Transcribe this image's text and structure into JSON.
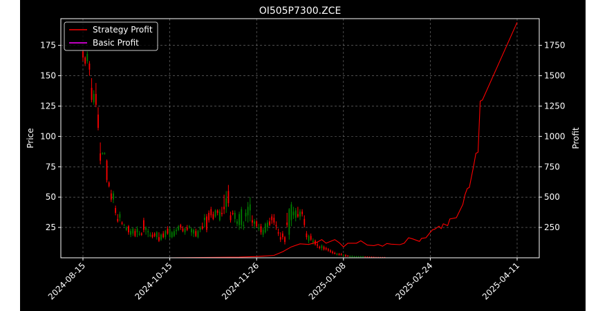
{
  "chart_data": {
    "type": "candlestick+line",
    "title": "OI505P7300.ZCE",
    "ylabel_left": "Price",
    "ylabel_right": "Profit",
    "xlabel": "",
    "grid": true,
    "legend": {
      "placement": "top-left",
      "entries": [
        "Strategy Profit",
        "Basic Profit"
      ]
    },
    "colors": {
      "background": "#000000",
      "up": "#008000",
      "down": "#ff0000",
      "strategy": "#ff0000",
      "basic": "#ff00ff",
      "text": "#ffffff"
    },
    "xticks": [
      "2024-08-15",
      "2024-10-15",
      "2024-11-26",
      "2025-01-08",
      "2025-02-24",
      "2025-04-11"
    ],
    "xtick_index": [
      0,
      40,
      80,
      120,
      160,
      200
    ],
    "ylim_left": [
      0,
      197
    ],
    "yticks_left": [
      25,
      50,
      75,
      100,
      125,
      150,
      175
    ],
    "ylim_right": [
      0,
      1970
    ],
    "yticks_right": [
      250,
      500,
      750,
      1000,
      1250,
      1500,
      1750
    ],
    "candles": [
      [
        0,
        170,
        172,
        162,
        165
      ],
      [
        1,
        165,
        166,
        158,
        160
      ],
      [
        2,
        162,
        170,
        160,
        168
      ],
      [
        3,
        160,
        162,
        150,
        155
      ],
      [
        4,
        140,
        148,
        128,
        130
      ],
      [
        5,
        128,
        138,
        126,
        135
      ],
      [
        6,
        135,
        144,
        124,
        126
      ],
      [
        7,
        118,
        124,
        105,
        107
      ],
      [
        8,
        86,
        95,
        77,
        80
      ],
      [
        9,
        86,
        87,
        85,
        86
      ],
      [
        10,
        86,
        87,
        85,
        86
      ],
      [
        11,
        80,
        81,
        62,
        64
      ],
      [
        12,
        62,
        63,
        58,
        59
      ],
      [
        13,
        53,
        56,
        46,
        48
      ],
      [
        14,
        48,
        55,
        45,
        53
      ],
      [
        15,
        41,
        43,
        35,
        37
      ],
      [
        16,
        32,
        36,
        29,
        30
      ],
      [
        17,
        33,
        38,
        30,
        36
      ],
      [
        18,
        29,
        30,
        27,
        28
      ],
      [
        19,
        27,
        28,
        26,
        27
      ],
      [
        20,
        23,
        26,
        22,
        25
      ],
      [
        21,
        26,
        27,
        19,
        21
      ],
      [
        22,
        19,
        24,
        17,
        22
      ],
      [
        23,
        20,
        25,
        18,
        24
      ],
      [
        24,
        22,
        24,
        17,
        18
      ],
      [
        25,
        21,
        26,
        17,
        24
      ],
      [
        26,
        19,
        22,
        18,
        20
      ],
      [
        27,
        20,
        21,
        18,
        19
      ],
      [
        28,
        31,
        33,
        21,
        23
      ],
      [
        29,
        23,
        26,
        19,
        25
      ],
      [
        30,
        21,
        24,
        17,
        22
      ],
      [
        31,
        18,
        21,
        17,
        19
      ],
      [
        32,
        19,
        21,
        16,
        17
      ],
      [
        33,
        20,
        21,
        17,
        18
      ],
      [
        34,
        17,
        22,
        15,
        21
      ],
      [
        35,
        17,
        21,
        13,
        14
      ],
      [
        36,
        15,
        20,
        14,
        19
      ],
      [
        37,
        20,
        22,
        16,
        17
      ],
      [
        38,
        17,
        23,
        15,
        22
      ],
      [
        39,
        24,
        26,
        19,
        20
      ],
      [
        40,
        17,
        25,
        16,
        24
      ],
      [
        41,
        17,
        22,
        16,
        21
      ],
      [
        42,
        18,
        24,
        17,
        22
      ],
      [
        43,
        22,
        25,
        19,
        23
      ],
      [
        44,
        23,
        27,
        22,
        26
      ],
      [
        45,
        27,
        28,
        23,
        25
      ],
      [
        46,
        24,
        26,
        21,
        22
      ],
      [
        47,
        21,
        25,
        19,
        24
      ],
      [
        48,
        25,
        27,
        22,
        23
      ],
      [
        49,
        25,
        27,
        24,
        26
      ],
      [
        50,
        21,
        25,
        18,
        24
      ],
      [
        51,
        20,
        24,
        17,
        23
      ],
      [
        52,
        22,
        24,
        17,
        18
      ],
      [
        53,
        17,
        23,
        16,
        22
      ],
      [
        54,
        23,
        26,
        21,
        25
      ],
      [
        55,
        26,
        29,
        23,
        24
      ],
      [
        56,
        31,
        36,
        25,
        33
      ],
      [
        57,
        34,
        36,
        21,
        23
      ],
      [
        58,
        37,
        39,
        29,
        31
      ],
      [
        59,
        40,
        42,
        33,
        35
      ],
      [
        60,
        36,
        38,
        31,
        32
      ],
      [
        61,
        34,
        40,
        33,
        39
      ],
      [
        62,
        39,
        40,
        35,
        37
      ],
      [
        63,
        31,
        40,
        30,
        38
      ],
      [
        64,
        37,
        42,
        34,
        36
      ],
      [
        65,
        42,
        52,
        36,
        40
      ],
      [
        66,
        42,
        55,
        37,
        49
      ],
      [
        67,
        55,
        60,
        42,
        45
      ],
      [
        68,
        35,
        38,
        29,
        31
      ],
      [
        69,
        37,
        39,
        35,
        36
      ],
      [
        70,
        32,
        39,
        29,
        37
      ],
      [
        71,
        28,
        32,
        26,
        30
      ],
      [
        72,
        27,
        38,
        23,
        36
      ],
      [
        73,
        27,
        42,
        24,
        40
      ],
      [
        74,
        26,
        30,
        23,
        27
      ],
      [
        75,
        34,
        40,
        30,
        37
      ],
      [
        76,
        35,
        46,
        29,
        42
      ],
      [
        77,
        39,
        50,
        30,
        44
      ],
      [
        78,
        31,
        35,
        26,
        29
      ],
      [
        79,
        28,
        32,
        24,
        30
      ],
      [
        80,
        30,
        31,
        25,
        26
      ],
      [
        81,
        24,
        28,
        22,
        25
      ],
      [
        82,
        26,
        28,
        19,
        21
      ],
      [
        83,
        19,
        25,
        17,
        23
      ],
      [
        84,
        21,
        29,
        20,
        28
      ],
      [
        85,
        25,
        31,
        22,
        29
      ],
      [
        86,
        30,
        33,
        26,
        27
      ],
      [
        87,
        34,
        36,
        28,
        31
      ],
      [
        88,
        33,
        36,
        27,
        29
      ],
      [
        89,
        27,
        30,
        23,
        26
      ],
      [
        90,
        21,
        24,
        18,
        20
      ],
      [
        91,
        17,
        21,
        13,
        15
      ],
      [
        92,
        20,
        22,
        15,
        17
      ],
      [
        93,
        17,
        18,
        11,
        13
      ],
      [
        94,
        29,
        37,
        25,
        27
      ],
      [
        95,
        19,
        41,
        15,
        40
      ],
      [
        96,
        31,
        46,
        26,
        44
      ],
      [
        97,
        35,
        42,
        32,
        38
      ],
      [
        98,
        33,
        41,
        30,
        39
      ],
      [
        99,
        36,
        42,
        33,
        34
      ],
      [
        100,
        34,
        40,
        31,
        38
      ],
      [
        101,
        38,
        40,
        34,
        36
      ],
      [
        102,
        32,
        35,
        25,
        27
      ],
      [
        103,
        20,
        22,
        15,
        17
      ],
      [
        104,
        14,
        19,
        12,
        18
      ],
      [
        105,
        18,
        20,
        14,
        15
      ],
      [
        106,
        13,
        16,
        11,
        14
      ],
      [
        107,
        14,
        15,
        10,
        11
      ],
      [
        108,
        11,
        13,
        8,
        10
      ],
      [
        109,
        9,
        10,
        7,
        8
      ],
      [
        110,
        8,
        11,
        6,
        10
      ],
      [
        111,
        9,
        10,
        6,
        7
      ],
      [
        112,
        8,
        9,
        6,
        7
      ],
      [
        113,
        7,
        8,
        5,
        6
      ],
      [
        114,
        6,
        7,
        4,
        5
      ],
      [
        115,
        5,
        6,
        3,
        4
      ],
      [
        116,
        4,
        5,
        3,
        3
      ],
      [
        117,
        3,
        4,
        2,
        3
      ],
      [
        118,
        3,
        4,
        2,
        2
      ],
      [
        119,
        3,
        4,
        2,
        2
      ],
      [
        120,
        2,
        3,
        1,
        2
      ],
      [
        121,
        2,
        3,
        1,
        1
      ],
      [
        122,
        2,
        2,
        1,
        1
      ],
      [
        123,
        1,
        2,
        0.5,
        1
      ],
      [
        124,
        1,
        2,
        0.5,
        1
      ],
      [
        125,
        1,
        1.5,
        0.5,
        1
      ],
      [
        126,
        1,
        1.5,
        0.5,
        1
      ],
      [
        127,
        1,
        1.5,
        0.5,
        1
      ],
      [
        128,
        1,
        1.5,
        0.5,
        1
      ],
      [
        129,
        1,
        1.5,
        0.5,
        1
      ],
      [
        130,
        1,
        1.2,
        0.5,
        0.8
      ],
      [
        131,
        1,
        1.2,
        0.5,
        0.8
      ],
      [
        132,
        0.8,
        1,
        0.5,
        0.6
      ],
      [
        133,
        0.8,
        1,
        0.5,
        0.6
      ],
      [
        134,
        0.6,
        1,
        0.4,
        0.5
      ],
      [
        135,
        0.5,
        0.8,
        0.3,
        0.4
      ],
      [
        136,
        0.5,
        0.8,
        0.3,
        0.4
      ],
      [
        137,
        0.5,
        0.7,
        0.3,
        0.4
      ],
      [
        138,
        0.5,
        0.7,
        0.3,
        0.4
      ],
      [
        139,
        0.5,
        0.7,
        0.3,
        0.4
      ]
    ],
    "series": [
      {
        "name": "Strategy Profit",
        "x": [
          0,
          40,
          72,
          80,
          88,
          92,
          96,
          100,
          104,
          108,
          110,
          112,
          116,
          118,
          120,
          122,
          126,
          128,
          131,
          134,
          136,
          138,
          140,
          142,
          146,
          148,
          150,
          152,
          155,
          156,
          158,
          160,
          161,
          162,
          164,
          165,
          166,
          168,
          169,
          172,
          175,
          176,
          177,
          178,
          180,
          181,
          182,
          183,
          184,
          200
        ],
        "y": [
          0,
          0,
          5,
          10,
          20,
          50,
          90,
          115,
          110,
          130,
          150,
          120,
          150,
          125,
          90,
          120,
          120,
          140,
          105,
          100,
          110,
          95,
          118,
          112,
          108,
          120,
          165,
          155,
          135,
          160,
          165,
          210,
          230,
          235,
          260,
          240,
          280,
          265,
          320,
          330,
          440,
          520,
          570,
          580,
          760,
          860,
          870,
          1290,
          1300,
          1940
        ]
      },
      {
        "name": "Basic Profit",
        "x": [
          0,
          200
        ],
        "y": [
          0,
          0
        ]
      }
    ]
  }
}
